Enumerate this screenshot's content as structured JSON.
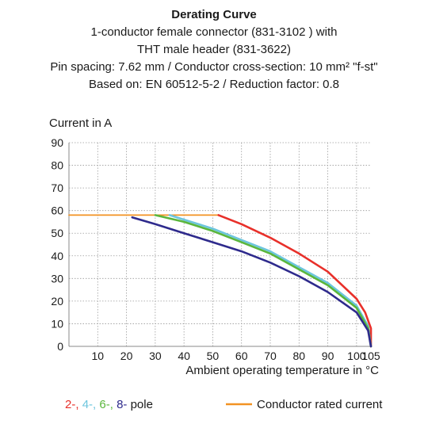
{
  "chart_data": {
    "type": "line",
    "title": "Derating Curve",
    "subtitle_lines": [
      "1-conductor female connector (831-3102 ) with",
      "THT male header (831-3622)",
      "Pin spacing: 7.62 mm / Conductor cross-section: 10 mm² \"f-st\"",
      "Based on: EN 60512-5-2 / Reduction factor: 0.8"
    ],
    "ylabel": "Current in A",
    "xlabel": "Ambient operating temperature in °C",
    "xlim": [
      0,
      105
    ],
    "ylim": [
      0,
      90
    ],
    "x_ticks": [
      10,
      20,
      30,
      40,
      50,
      60,
      70,
      80,
      90,
      100,
      105
    ],
    "x_tick_labels": [
      "10",
      "20",
      "30",
      "40",
      "50",
      "60",
      "70",
      "80",
      "90",
      "100",
      "105"
    ],
    "y_ticks": [
      0,
      10,
      20,
      30,
      40,
      50,
      60,
      70,
      80,
      90
    ],
    "y_tick_labels": [
      "0",
      "10",
      "20",
      "30",
      "40",
      "50",
      "60",
      "70",
      "80",
      "90"
    ],
    "grid": true,
    "legend_placement": "bottom",
    "pole_legend": {
      "items": [
        {
          "text": "2-",
          "color": "#e8302a"
        },
        {
          "text": "4-",
          "color": "#6cc5dd"
        },
        {
          "text": "6-",
          "color": "#5ab63c"
        },
        {
          "text": "8-",
          "color": "#2e2a8c"
        }
      ],
      "suffix": "pole"
    },
    "rated_legend": {
      "text": "Conductor rated current",
      "color": "#f29222"
    },
    "series": [
      {
        "name": "Conductor rated current",
        "color": "#f29222",
        "x": [
          0,
          52
        ],
        "y": [
          58,
          58
        ]
      },
      {
        "name": "2-",
        "color": "#e8302a",
        "x": [
          52,
          60,
          70,
          80,
          90,
          100,
          103,
          105,
          105
        ],
        "y": [
          58,
          54,
          48,
          41,
          33,
          21,
          15,
          8,
          0
        ]
      },
      {
        "name": "4-",
        "color": "#6cc5dd",
        "x": [
          35,
          40,
          50,
          60,
          70,
          80,
          90,
          100,
          104,
          105
        ],
        "y": [
          58,
          56,
          52,
          47,
          42,
          35,
          28,
          18,
          9,
          0
        ]
      },
      {
        "name": "6-",
        "color": "#5ab63c",
        "x": [
          30,
          40,
          50,
          60,
          70,
          80,
          90,
          100,
          104,
          105
        ],
        "y": [
          58,
          55,
          51,
          46,
          41,
          34,
          27,
          17,
          8,
          0
        ]
      },
      {
        "name": "8-",
        "color": "#2e2a8c",
        "x": [
          22,
          30,
          40,
          50,
          60,
          70,
          80,
          90,
          100,
          104,
          105
        ],
        "y": [
          57,
          54,
          50,
          46,
          42,
          37,
          31,
          24,
          15,
          7,
          0
        ]
      }
    ]
  }
}
